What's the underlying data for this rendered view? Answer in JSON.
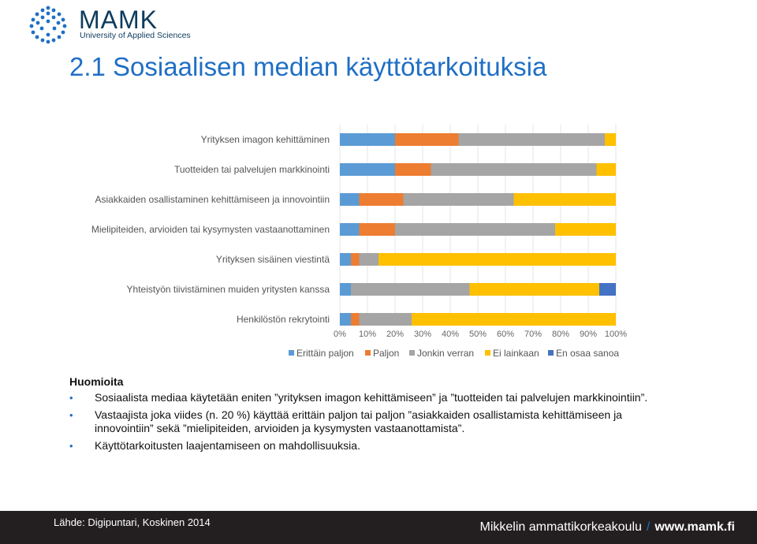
{
  "logo": {
    "name": "MAMK",
    "sub": "University of Applied Sciences"
  },
  "title": "2.1 Sosiaalisen median käyttötarkoituksia",
  "chart_data": {
    "type": "bar",
    "orientation": "horizontal",
    "stacked": "percent",
    "categories": [
      "Yrityksen imagon kehittäminen",
      "Tuotteiden tai palvelujen markkinointi",
      "Asiakkaiden osallistaminen kehittämiseen ja innovointiin",
      "Mielipiteiden, arvioiden tai kysymysten vastaanottaminen",
      "Yrityksen sisäinen viestintä",
      "Yhteistyön tiivistäminen muiden yritysten kanssa",
      "Henkilöstön rekrytointi"
    ],
    "series": [
      {
        "name": "Erittäin paljon",
        "color": "#5b9bd5",
        "values": [
          20,
          20,
          7,
          7,
          4,
          4,
          4
        ]
      },
      {
        "name": "Paljon",
        "color": "#ed7d31",
        "values": [
          23,
          13,
          16,
          13,
          3,
          0,
          3
        ]
      },
      {
        "name": "Jonkin verran",
        "color": "#a5a5a5",
        "values": [
          53,
          60,
          40,
          58,
          7,
          43,
          19
        ]
      },
      {
        "name": "Ei lainkaan",
        "color": "#ffc000",
        "values": [
          4,
          7,
          37,
          22,
          86,
          47,
          74
        ]
      },
      {
        "name": "En osaa sanoa",
        "color": "#4472c4",
        "values": [
          0,
          0,
          0,
          0,
          0,
          6,
          0
        ]
      }
    ],
    "xlim": [
      0,
      100
    ],
    "xticks": [
      "0%",
      "10%",
      "20%",
      "30%",
      "40%",
      "50%",
      "60%",
      "70%",
      "80%",
      "90%",
      "100%"
    ],
    "legend_position": "bottom"
  },
  "notes": {
    "heading": "Huomioita",
    "items": [
      "Sosiaalista mediaa käytetään eniten ”yrityksen imagon kehittämiseen” ja ”tuotteiden tai palvelujen markkinointiin”.",
      "Vastaajista joka viides (n. 20 %) käyttää erittäin paljon tai paljon ”asiakkaiden osallistamista kehittämiseen ja innovointiin” sekä ”mielipiteiden, arvioiden ja kysymysten vastaanottamista”.",
      "Käyttötarkoitusten laajentamiseen on mahdollisuuksia."
    ]
  },
  "footer": {
    "source": "Lähde: Digipuntari, Koskinen 2014",
    "org": "Mikkelin ammattikorkeakoulu",
    "separator": "/",
    "url": "www.mamk.fi"
  }
}
